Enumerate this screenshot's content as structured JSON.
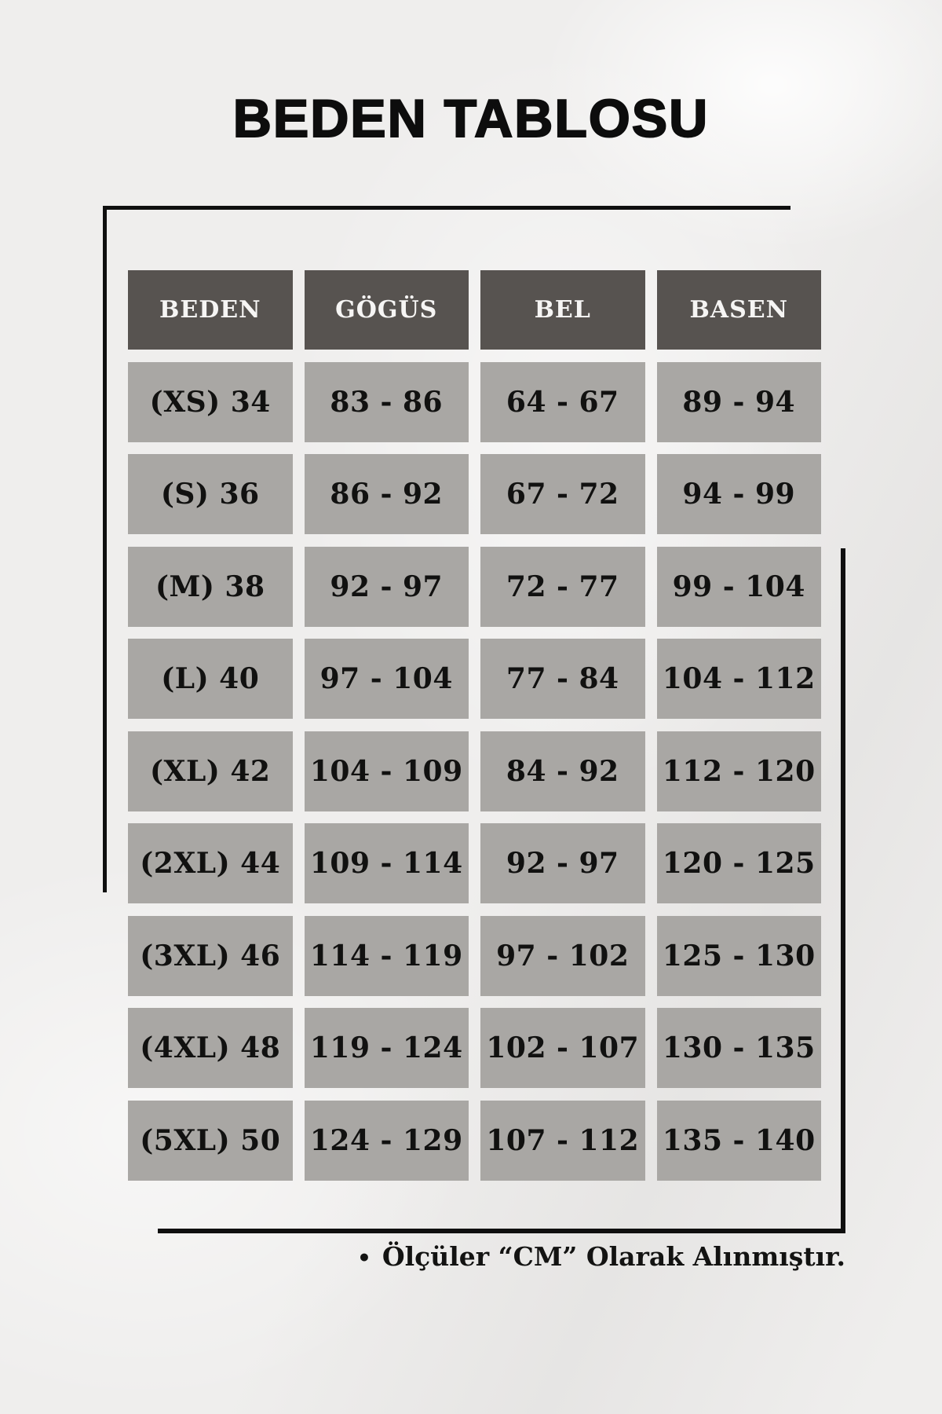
{
  "title": "BEDEN TABLOSU",
  "table": {
    "headers": [
      "BEDEN",
      "GÖGÜS",
      "BEL",
      "BASEN"
    ],
    "rows": [
      [
        "(XS) 34",
        "83 - 86",
        "64 - 67",
        "89 - 94"
      ],
      [
        "(S) 36",
        "86 - 92",
        "67 - 72",
        "94 - 99"
      ],
      [
        "(M) 38",
        "92 - 97",
        "72 - 77",
        "99 - 104"
      ],
      [
        "(L) 40",
        "97 - 104",
        "77 - 84",
        "104 - 112"
      ],
      [
        "(XL) 42",
        "104 - 109",
        "84 - 92",
        "112 - 120"
      ],
      [
        "(2XL) 44",
        "109 - 114",
        "92 - 97",
        "120 - 125"
      ],
      [
        "(3XL) 46",
        "114 - 119",
        "97 - 102",
        "125 - 130"
      ],
      [
        "(4XL) 48",
        "119 - 124",
        "102 - 107",
        "130 - 135"
      ],
      [
        "(5XL) 50",
        "124 - 129",
        "107 - 112",
        "135 - 140"
      ]
    ]
  },
  "footer": {
    "bullet": "•",
    "note": "Ölçüler “CM” Olarak Alınmıştır."
  },
  "colors": {
    "header_bg": "#575350",
    "cell_bg": "#a9a7a4",
    "line_color": "#0f0f0f",
    "page_bg": "#efeeed",
    "header_text": "#f6f5f4",
    "cell_text": "#111110"
  }
}
